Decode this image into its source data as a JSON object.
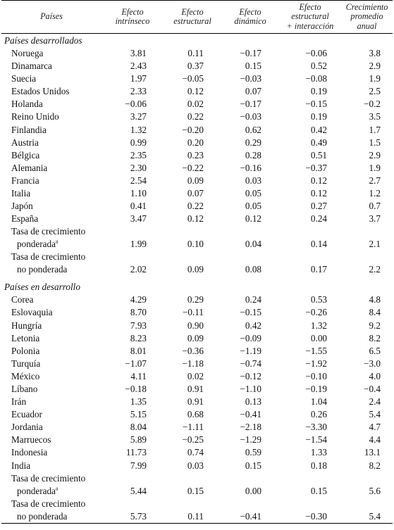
{
  "headers": {
    "country": "Países",
    "intrinsic": [
      "Efecto",
      "intrínseco"
    ],
    "structural": [
      "Efecto",
      "estructural"
    ],
    "dynamic": [
      "Efecto",
      "dinámico"
    ],
    "interaction": [
      "Efecto",
      "estructural",
      "+ interacción"
    ],
    "growth": [
      "Crecimiento",
      "promedio",
      "anual"
    ]
  },
  "sections": {
    "developed": "Países desarrollados",
    "developing": "Países en desarrollo"
  },
  "weighted_label": [
    "Tasa de crecimiento",
    "ponderada",
    "a"
  ],
  "unweighted_label": [
    "Tasa de crecimiento",
    "no ponderada"
  ],
  "developed": [
    {
      "country": "Noruega",
      "v": [
        "3.81",
        "0.11",
        "−0.17",
        "−0.06",
        "3.8"
      ]
    },
    {
      "country": "Dinamarca",
      "v": [
        "2.43",
        "0.37",
        "0.15",
        "0.52",
        "2.9"
      ]
    },
    {
      "country": "Suecia",
      "v": [
        "1.97",
        "−0.05",
        "−0.03",
        "−0.08",
        "1.9"
      ]
    },
    {
      "country": "Estados Unidos",
      "v": [
        "2.33",
        "0.12",
        "0.07",
        "0.19",
        "2.5"
      ]
    },
    {
      "country": "Holanda",
      "v": [
        "−0.06",
        "0.02",
        "−0.17",
        "−0.15",
        "−0.2"
      ]
    },
    {
      "country": "Reino Unido",
      "v": [
        "3.27",
        "0.22",
        "−0.03",
        "0.19",
        "3.5"
      ]
    },
    {
      "country": "Finlandia",
      "v": [
        "1.32",
        "−0.20",
        "0.62",
        "0.42",
        "1.7"
      ]
    },
    {
      "country": "Austria",
      "v": [
        "0.99",
        "0.20",
        "0.29",
        "0.49",
        "1.5"
      ]
    },
    {
      "country": "Bélgica",
      "v": [
        "2.35",
        "0.23",
        "0.28",
        "0.51",
        "2.9"
      ]
    },
    {
      "country": "Alemania",
      "v": [
        "2.30",
        "−0.22",
        "−0.16",
        "−0.37",
        "1.9"
      ]
    },
    {
      "country": "Francia",
      "v": [
        "2.54",
        "0.09",
        "0.03",
        "0.12",
        "2.7"
      ]
    },
    {
      "country": "Italia",
      "v": [
        "1.10",
        "0.07",
        "0.05",
        "0.12",
        "1.2"
      ]
    },
    {
      "country": "Japón",
      "v": [
        "0.41",
        "0.22",
        "0.05",
        "0.27",
        "0.7"
      ]
    },
    {
      "country": "España",
      "v": [
        "3.47",
        "0.12",
        "0.12",
        "0.24",
        "3.7"
      ]
    }
  ],
  "developed_weighted": [
    "1.99",
    "0.10",
    "0.04",
    "0.14",
    "2.1"
  ],
  "developed_unweighted": [
    "2.02",
    "0.09",
    "0.08",
    "0.17",
    "2.2"
  ],
  "developing": [
    {
      "country": "Corea",
      "v": [
        "4.29",
        "0.29",
        "0.24",
        "0.53",
        "4.8"
      ]
    },
    {
      "country": "Eslovaquia",
      "v": [
        "8.70",
        "−0.11",
        "−0.15",
        "−0.26",
        "8.4"
      ]
    },
    {
      "country": "Hungría",
      "v": [
        "7.93",
        "0.90",
        "0.42",
        "1.32",
        "9.2"
      ]
    },
    {
      "country": "Letonia",
      "v": [
        "8.23",
        "0.09",
        "−0.09",
        "0.00",
        "8.2"
      ]
    },
    {
      "country": "Polonia",
      "v": [
        "8.01",
        "−0.36",
        "−1.19",
        "−1.55",
        "6.5"
      ]
    },
    {
      "country": "Turquía",
      "v": [
        "−1.07",
        "−1.18",
        "−0.74",
        "−1.92",
        "−3.0"
      ]
    },
    {
      "country": "México",
      "v": [
        "4.11",
        "0.02",
        "−0.12",
        "−0.10",
        "4.0"
      ]
    },
    {
      "country": "Líbano",
      "v": [
        "−0.18",
        "0.91",
        "−1.10",
        "−0.19",
        "−0.4"
      ]
    },
    {
      "country": "Irán",
      "v": [
        "1.35",
        "0.91",
        "0.13",
        "1.04",
        "2.4"
      ]
    },
    {
      "country": "Ecuador",
      "v": [
        "5.15",
        "0.68",
        "−0.41",
        "0.26",
        "5.4"
      ]
    },
    {
      "country": "Jordania",
      "v": [
        "8.04",
        "−1.11",
        "−2.18",
        "−3.30",
        "4.7"
      ]
    },
    {
      "country": "Marruecos",
      "v": [
        "5.89",
        "−0.25",
        "−1.29",
        "−1.54",
        "4.4"
      ]
    },
    {
      "country": "Indonesia",
      "v": [
        "11.73",
        "0.74",
        "0.59",
        "1.33",
        "13.1"
      ]
    },
    {
      "country": "India",
      "v": [
        "7.99",
        "0.03",
        "0.15",
        "0.18",
        "8.2"
      ]
    }
  ],
  "developing_weighted": [
    "5.44",
    "0.15",
    "0.00",
    "0.15",
    "5.6"
  ],
  "developing_unweighted": [
    "5.73",
    "0.11",
    "−0.41",
    "−0.30",
    "5.4"
  ]
}
